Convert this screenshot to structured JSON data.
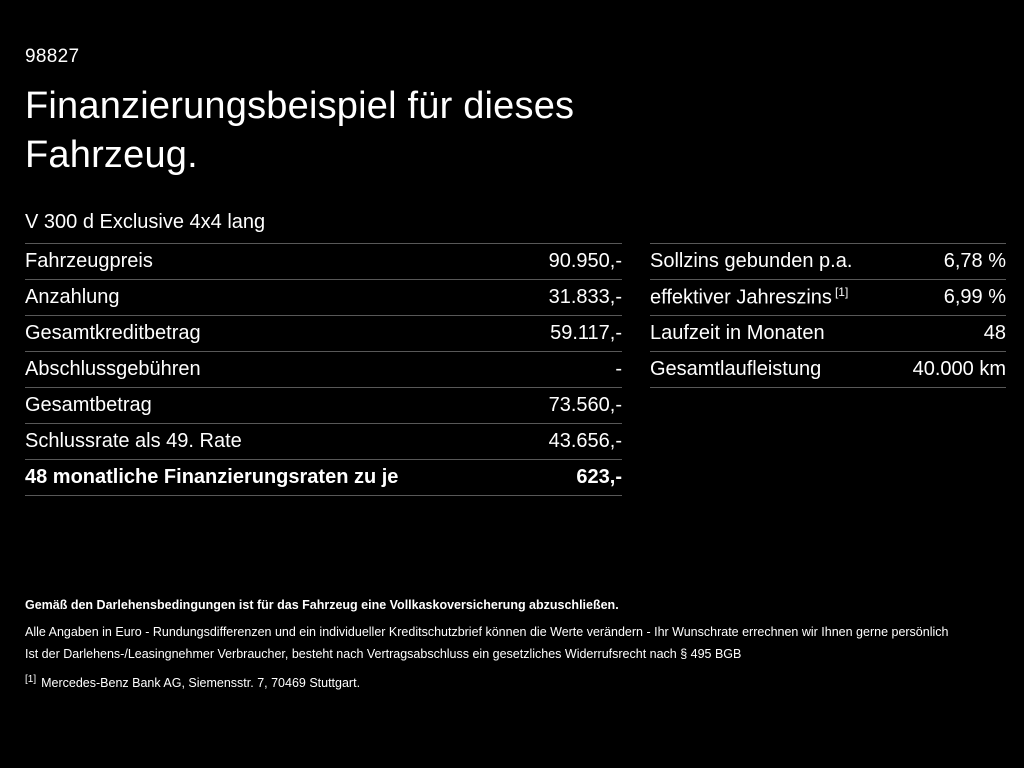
{
  "page": {
    "vehicle_id": "98827",
    "title": "Finanzierungsbeispiel für dieses Fahrzeug.",
    "vehicle_model": "V 300 d Exclusive 4x4 lang"
  },
  "left_table": {
    "rows": [
      {
        "label": "Fahrzeugpreis",
        "value": "90.950,-"
      },
      {
        "label": "Anzahlung",
        "value": "31.833,-"
      },
      {
        "label": "Gesamtkreditbetrag",
        "value": "59.117,-"
      },
      {
        "label": "Abschlussgebühren",
        "value": "-"
      },
      {
        "label": "Gesamtbetrag",
        "value": "73.560,-"
      },
      {
        "label": "Schlussrate als 49. Rate",
        "value": "43.656,-"
      },
      {
        "label": "48 monatliche Finanzierungsraten zu je",
        "value": "623,-"
      }
    ]
  },
  "right_table": {
    "rows": [
      {
        "label": "Sollzins gebunden p.a.",
        "sup": "",
        "value": "6,78 %"
      },
      {
        "label": "effektiver Jahreszins",
        "sup": "[1]",
        "value": "6,99 %"
      },
      {
        "label": "Laufzeit in Monaten",
        "sup": "",
        "value": "48"
      },
      {
        "label": "Gesamtlaufleistung",
        "sup": "",
        "value": "40.000 km"
      }
    ]
  },
  "footer": {
    "line_bold": "Gemäß den Darlehensbedingungen ist für das Fahrzeug eine Vollkaskoversicherung abzuschließen.",
    "line1": "Alle Angaben in Euro - Rundungsdifferenzen und ein individueller Kreditschutzbrief können die Werte verändern - Ihr Wunschrate errechnen wir Ihnen gerne persönlich",
    "line2": "Ist der Darlehens-/Leasingnehmer Verbraucher, besteht nach Vertragsabschluss ein gesetzliches Widerrufsrecht nach § 495 BGB",
    "footnote_marker": "[1]",
    "footnote_text": "Mercedes-Benz Bank AG, Siemensstr. 7, 70469 Stuttgart."
  },
  "colors": {
    "background": "#000000",
    "text": "#ffffff",
    "divider": "#585858"
  }
}
